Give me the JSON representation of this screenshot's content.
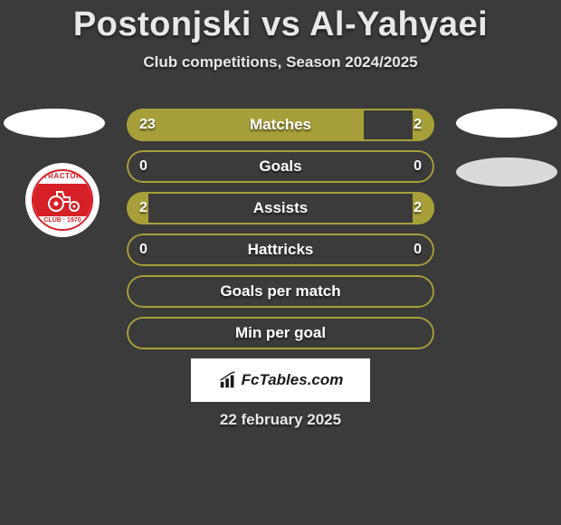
{
  "title": "Postonjski vs Al-Yahyaei",
  "subtitle": "Club competitions, Season 2024/2025",
  "date": "22 february 2025",
  "footer_brand": "FcTables.com",
  "colors": {
    "background": "#3b3b3b",
    "bar_fill": "#a7a03a",
    "bar_border": "#a7a03a",
    "text": "#e8e8e8",
    "badge_red": "#d62027",
    "flag_placeholder": "#ffffff",
    "flag_placeholder2": "#dadada"
  },
  "badge": {
    "top_text": "TRACTOR",
    "bottom_text": "1970",
    "sub_text": "CLUB"
  },
  "stats": [
    {
      "label": "Matches",
      "left_val": "23",
      "right_val": "2",
      "left_fill_pct": 77,
      "right_fill_pct": 7
    },
    {
      "label": "Goals",
      "left_val": "0",
      "right_val": "0",
      "left_fill_pct": 0,
      "right_fill_pct": 0
    },
    {
      "label": "Assists",
      "left_val": "2",
      "right_val": "2",
      "left_fill_pct": 7,
      "right_fill_pct": 7
    },
    {
      "label": "Hattricks",
      "left_val": "0",
      "right_val": "0",
      "left_fill_pct": 0,
      "right_fill_pct": 0
    },
    {
      "label": "Goals per match",
      "left_val": "",
      "right_val": "",
      "left_fill_pct": 0,
      "right_fill_pct": 0
    },
    {
      "label": "Min per goal",
      "left_val": "",
      "right_val": "",
      "left_fill_pct": 0,
      "right_fill_pct": 0
    }
  ]
}
